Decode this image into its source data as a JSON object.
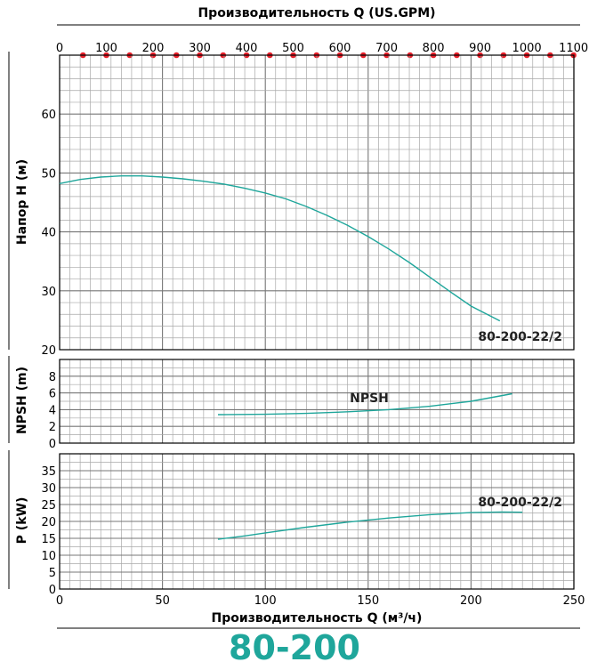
{
  "model_title": "80-200",
  "colors": {
    "curve": "#1fa69b",
    "grid": "#a8a8a8",
    "grid_major": "#777777",
    "dot": "#e8202a",
    "title": "#1fa69b"
  },
  "chart_data": [
    {
      "name": "head",
      "type": "line",
      "top_axis": {
        "label": "Производительность Q (US.GPM)",
        "ticks": [
          "0",
          "100",
          "200",
          "300",
          "400",
          "500",
          "600",
          "700",
          "800",
          "900",
          "1000",
          "1100"
        ],
        "gpm_per_m3h": 4.4029
      },
      "xlim": [
        0,
        250
      ],
      "ylim": [
        20,
        70
      ],
      "ylabel": "Напор H (м)",
      "yticks": [
        "20",
        "30",
        "40",
        "50",
        "60"
      ],
      "series": [
        {
          "name": "80-200-22/2",
          "points": [
            [
              0,
              48.2
            ],
            [
              10,
              48.9
            ],
            [
              20,
              49.3
            ],
            [
              30,
              49.5
            ],
            [
              40,
              49.5
            ],
            [
              50,
              49.3
            ],
            [
              60,
              49.0
            ],
            [
              70,
              48.6
            ],
            [
              80,
              48.1
            ],
            [
              90,
              47.4
            ],
            [
              100,
              46.6
            ],
            [
              110,
              45.6
            ],
            [
              120,
              44.3
            ],
            [
              130,
              42.8
            ],
            [
              140,
              41.1
            ],
            [
              150,
              39.2
            ],
            [
              160,
              37.1
            ],
            [
              170,
              34.8
            ],
            [
              180,
              32.3
            ],
            [
              190,
              29.8
            ],
            [
              200,
              27.4
            ],
            [
              214,
              24.9
            ]
          ]
        }
      ],
      "annotation": "80-200-22/2"
    },
    {
      "name": "npsh",
      "type": "line",
      "xlim": [
        0,
        250
      ],
      "ylim": [
        0,
        10
      ],
      "ylabel": "NPSH (m)",
      "yticks": [
        "0",
        "2",
        "4",
        "6",
        "8"
      ],
      "series": [
        {
          "name": "NPSH",
          "points": [
            [
              77,
              3.4
            ],
            [
              100,
              3.45
            ],
            [
              120,
              3.55
            ],
            [
              140,
              3.75
            ],
            [
              160,
              4.0
            ],
            [
              180,
              4.4
            ],
            [
              200,
              5.0
            ],
            [
              220,
              5.9
            ]
          ]
        }
      ],
      "annotation": "NPSH"
    },
    {
      "name": "power",
      "type": "line",
      "xlim": [
        0,
        250
      ],
      "ylim": [
        0,
        40
      ],
      "ylabel": "P (kW)",
      "yticks": [
        "0",
        "5",
        "10",
        "15",
        "20",
        "25",
        "30",
        "35"
      ],
      "xticks": [
        "0",
        "50",
        "100",
        "150",
        "200",
        "250"
      ],
      "xlabel": "Производительность Q (м³/ч)",
      "series": [
        {
          "name": "80-200-22/2",
          "points": [
            [
              77,
              14.7
            ],
            [
              90,
              15.7
            ],
            [
              100,
              16.6
            ],
            [
              120,
              18.3
            ],
            [
              140,
              19.8
            ],
            [
              160,
              21.0
            ],
            [
              180,
              22.0
            ],
            [
              200,
              22.6
            ],
            [
              215,
              22.8
            ],
            [
              225,
              22.7
            ]
          ]
        }
      ],
      "annotation": "80-200-22/2"
    }
  ]
}
